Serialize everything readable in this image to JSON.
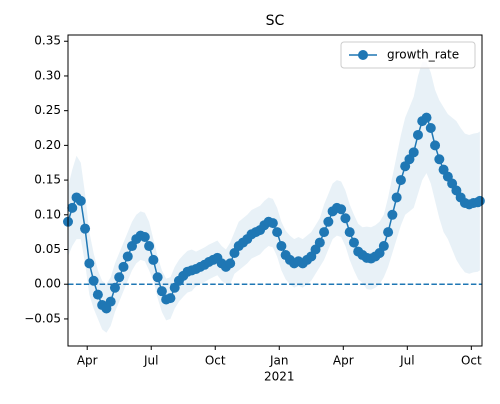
{
  "chart_data": {
    "type": "line",
    "title": "SC",
    "x": [
      2.1,
      2.3,
      2.5,
      2.7,
      2.9,
      3.1,
      3.3,
      3.5,
      3.7,
      3.9,
      4.1,
      4.3,
      4.5,
      4.7,
      4.9,
      5.1,
      5.3,
      5.5,
      5.7,
      5.9,
      6.1,
      6.3,
      6.5,
      6.7,
      6.9,
      7.1,
      7.3,
      7.5,
      7.7,
      7.9,
      8.1,
      8.3,
      8.5,
      8.7,
      8.9,
      9.1,
      9.3,
      9.5,
      9.7,
      9.9,
      10.1,
      10.3,
      10.5,
      10.7,
      10.9,
      11.1,
      11.3,
      11.5,
      11.7,
      11.9,
      12.1,
      12.3,
      12.5,
      12.7,
      12.9,
      13.1,
      13.3,
      13.5,
      13.7,
      13.9,
      14.1,
      14.3,
      14.5,
      14.7,
      14.9,
      15.1,
      15.3,
      15.5,
      15.7,
      15.9,
      16.1,
      16.3,
      16.5,
      16.7,
      16.9,
      17.1,
      17.3,
      17.5,
      17.7,
      17.9,
      18.1,
      18.3,
      18.5,
      18.7,
      18.9,
      19.1,
      19.3,
      19.5,
      19.7,
      19.9,
      20.1,
      20.3,
      20.5,
      20.7,
      20.9,
      21.1,
      21.3,
      21.4
    ],
    "series": [
      {
        "name": "growth_rate",
        "color": "#1f77b4",
        "values": [
          0.09,
          0.11,
          0.125,
          0.12,
          0.08,
          0.03,
          0.005,
          -0.015,
          -0.03,
          -0.035,
          -0.025,
          -0.005,
          0.01,
          0.025,
          0.04,
          0.055,
          0.065,
          0.07,
          0.068,
          0.055,
          0.035,
          0.01,
          -0.01,
          -0.022,
          -0.02,
          -0.005,
          0.005,
          0.012,
          0.018,
          0.02,
          0.022,
          0.025,
          0.028,
          0.032,
          0.035,
          0.038,
          0.03,
          0.025,
          0.03,
          0.045,
          0.055,
          0.06,
          0.065,
          0.072,
          0.075,
          0.078,
          0.085,
          0.09,
          0.088,
          0.075,
          0.055,
          0.042,
          0.035,
          0.03,
          0.033,
          0.03,
          0.035,
          0.04,
          0.05,
          0.06,
          0.075,
          0.09,
          0.105,
          0.11,
          0.108,
          0.095,
          0.075,
          0.06,
          0.047,
          0.042,
          0.038,
          0.037,
          0.04,
          0.045,
          0.055,
          0.075,
          0.1,
          0.125,
          0.15,
          0.17,
          0.18,
          0.19,
          0.215,
          0.235,
          0.24,
          0.225,
          0.2,
          0.18,
          0.165,
          0.155,
          0.145,
          0.135,
          0.125,
          0.117,
          0.115,
          0.117,
          0.118,
          0.12
        ],
        "errors": [
          0.05,
          0.055,
          0.06,
          0.055,
          0.05,
          0.045,
          0.04,
          0.035,
          0.035,
          0.035,
          0.035,
          0.035,
          0.035,
          0.035,
          0.035,
          0.035,
          0.035,
          0.035,
          0.035,
          0.035,
          0.03,
          0.03,
          0.03,
          0.03,
          0.03,
          0.03,
          0.03,
          0.03,
          0.03,
          0.03,
          0.025,
          0.025,
          0.025,
          0.025,
          0.025,
          0.025,
          0.025,
          0.025,
          0.03,
          0.03,
          0.035,
          0.035,
          0.035,
          0.035,
          0.035,
          0.035,
          0.035,
          0.035,
          0.035,
          0.035,
          0.035,
          0.035,
          0.035,
          0.035,
          0.035,
          0.035,
          0.035,
          0.035,
          0.035,
          0.035,
          0.04,
          0.04,
          0.04,
          0.04,
          0.04,
          0.04,
          0.04,
          0.04,
          0.04,
          0.04,
          0.045,
          0.045,
          0.045,
          0.045,
          0.045,
          0.05,
          0.055,
          0.06,
          0.065,
          0.07,
          0.075,
          0.08,
          0.085,
          0.085,
          0.08,
          0.08,
          0.08,
          0.085,
          0.09,
          0.09,
          0.095,
          0.1,
          0.1,
          0.1,
          0.1,
          0.1,
          0.1,
          0.1
        ],
        "band_color": "#1f77b4"
      }
    ],
    "xlim": [
      2.1,
      21.5
    ],
    "xticks": [
      {
        "value": 3,
        "label": "Apr"
      },
      {
        "value": 6,
        "label": "Jul"
      },
      {
        "value": 9,
        "label": "Oct"
      },
      {
        "value": 12,
        "label": "Jan"
      },
      {
        "value": 15,
        "label": "Apr"
      },
      {
        "value": 18,
        "label": "Jul"
      },
      {
        "value": 21,
        "label": "Oct"
      }
    ],
    "year_label": {
      "value": 12,
      "label": "2021"
    },
    "ylim": [
      -0.089,
      0.359
    ],
    "yticks": [
      {
        "value": -0.05,
        "label": "−0.05"
      },
      {
        "value": 0,
        "label": "0.00"
      },
      {
        "value": 0.05,
        "label": "0.05"
      },
      {
        "value": 0.1,
        "label": "0.10"
      },
      {
        "value": 0.15,
        "label": "0.15"
      },
      {
        "value": 0.2,
        "label": "0.20"
      },
      {
        "value": 0.25,
        "label": "0.25"
      },
      {
        "value": 0.3,
        "label": "0.30"
      },
      {
        "value": 0.35,
        "label": "0.35"
      }
    ],
    "hline": 0,
    "legend": "upper right"
  }
}
